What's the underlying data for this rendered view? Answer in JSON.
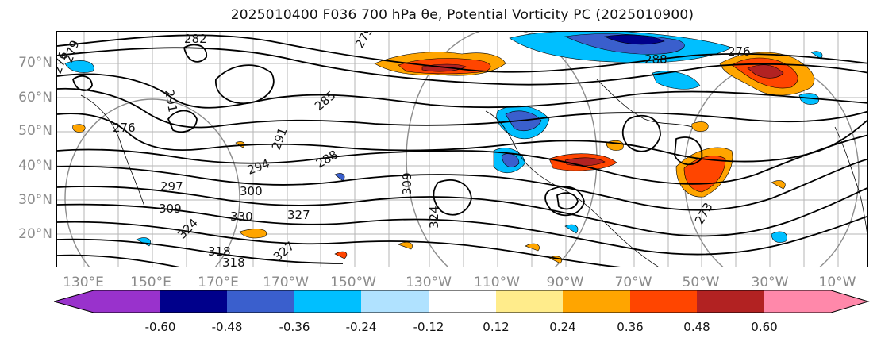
{
  "title": "2025010400 F036 700 hPa θe, Potential Vorticity PC (2025010900)",
  "lat_labels": [
    "70°N",
    "60°N",
    "50°N",
    "40°N",
    "30°N",
    "20°N"
  ],
  "lon_labels": [
    "130°E",
    "150°E",
    "170°E",
    "170°W",
    "150°W",
    "130°W",
    "110°W",
    "90°W",
    "70°W",
    "50°W",
    "30°W",
    "10°W"
  ],
  "contour_labels": [
    "276",
    "279",
    "282",
    "279",
    "291",
    "285",
    "288",
    "276",
    "276",
    "291",
    "294",
    "288",
    "297",
    "300",
    "309",
    "309",
    "330",
    "327",
    "324",
    "318",
    "318",
    "324",
    "273",
    "327"
  ],
  "colorbar": {
    "tick_labels": [
      "-0.60",
      "-0.48",
      "-0.36",
      "-0.24",
      "-0.12",
      "0.12",
      "0.24",
      "0.36",
      "0.48",
      "0.60"
    ],
    "colors": [
      "#9932cc",
      "#00008b",
      "#3a5fcd",
      "#00bfff",
      "#b0e2ff",
      "#ffffff",
      "#ffec8b",
      "#ffa500",
      "#ff4500",
      "#b22222",
      "#ff88aa",
      "#ff88aa"
    ]
  },
  "colors": {
    "pos_mid": "#ffa500",
    "pos_strong": "#ff4500",
    "pos_max": "#b22222",
    "neg_mid": "#3a5fcd",
    "neg_weak": "#00bfff",
    "neg_strong": "#00008b"
  }
}
